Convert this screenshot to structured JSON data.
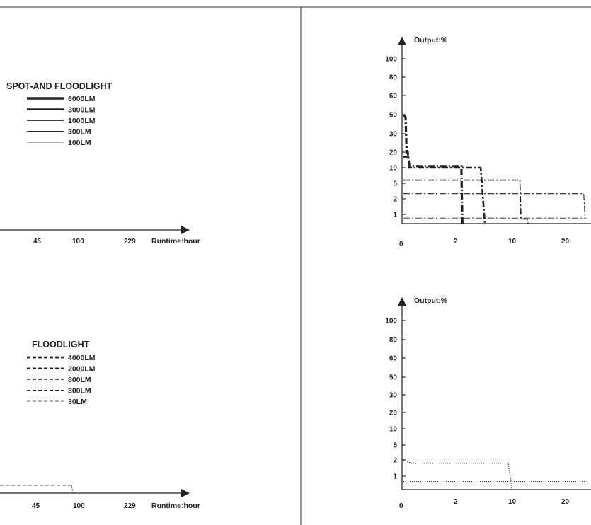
{
  "chart_data": [
    {
      "panel": "spot-and-floodlight-legend",
      "type": "line",
      "legend": {
        "title": "SPOT-AND FLOODLIGHT",
        "entries": [
          {
            "label": "6000LM",
            "style": "solid"
          },
          {
            "label": "3000LM",
            "style": "solid"
          },
          {
            "label": "1000LM",
            "style": "solid"
          },
          {
            "label": "300LM",
            "style": "solid"
          },
          {
            "label": "100LM",
            "style": "solid"
          }
        ]
      },
      "x_ticks": [
        "45",
        "100",
        "229"
      ],
      "xlabel": "Runtime:hour"
    },
    {
      "panel": "spot-and-floodlight-output",
      "type": "line",
      "ylabel": "Output:%",
      "y_ticks": [
        "100",
        "80",
        "60",
        "50",
        "30",
        "20",
        "10",
        "5",
        "2",
        "1"
      ],
      "x_ticks": [
        "0",
        "2",
        "10",
        "20"
      ],
      "series": [
        {
          "style": "dash-dot",
          "weight": 3.2,
          "points": [
            [
              0,
              50
            ],
            [
              0.08,
              47
            ],
            [
              0.12,
              20
            ],
            [
              0.16,
              20
            ],
            [
              0.22,
              11
            ],
            [
              2.7,
              11
            ],
            [
              2.85,
              0
            ]
          ]
        },
        {
          "style": "dash-dot",
          "weight": 2.6,
          "points": [
            [
              0,
              17
            ],
            [
              0.18,
              17
            ],
            [
              0.22,
              10
            ],
            [
              5.5,
              10
            ],
            [
              6.1,
              0
            ]
          ]
        },
        {
          "style": "dash-dot",
          "weight": 1.6,
          "points": [
            [
              0,
              6
            ],
            [
              11.5,
              6
            ],
            [
              11.7,
              0.5
            ],
            [
              12.8,
              0.5
            ],
            [
              13,
              0
            ]
          ]
        },
        {
          "style": "dash-dot",
          "weight": 1.1,
          "points": [
            [
              0,
              3
            ],
            [
              33,
              3
            ],
            [
              34,
              0.5
            ]
          ]
        },
        {
          "style": "dash-dot",
          "weight": 0.9,
          "points": [
            [
              0,
              0.6
            ],
            [
              35,
              0.6
            ]
          ]
        }
      ]
    },
    {
      "panel": "floodlight-legend",
      "type": "line",
      "legend": {
        "title": "FLOODLIGHT",
        "entries": [
          {
            "label": "4000LM",
            "style": "dashed"
          },
          {
            "label": "2000LM",
            "style": "dashed"
          },
          {
            "label": "800LM",
            "style": "dashed"
          },
          {
            "label": "300LM",
            "style": "dashed"
          },
          {
            "label": "30LM",
            "style": "dashed"
          }
        ]
      },
      "x_ticks": [
        "45",
        "100",
        "229"
      ],
      "xlabel": "Runtime:hour"
    },
    {
      "panel": "floodlight-output",
      "type": "line",
      "ylabel": "Output:%",
      "y_ticks": [
        "100",
        "80",
        "60",
        "50",
        "30",
        "20",
        "10",
        "5",
        "2",
        "1"
      ],
      "x_ticks": [
        "0",
        "2",
        "10",
        "20"
      ],
      "series": [
        {
          "style": "dotted",
          "weight": 1.4,
          "points": [
            [
              0,
              2
            ],
            [
              0.3,
              1.8
            ],
            [
              9.5,
              1.8
            ],
            [
              10,
              0.1
            ]
          ]
        },
        {
          "style": "dotted",
          "weight": 1.0,
          "points": [
            [
              0,
              0.6
            ],
            [
              35,
              0.6
            ]
          ]
        },
        {
          "style": "dotted",
          "weight": 0.9,
          "points": [
            [
              0,
              0.35
            ],
            [
              35,
              0.35
            ]
          ]
        }
      ]
    }
  ],
  "colors": {
    "ink": "#222222",
    "panel_border": "#333333",
    "background": "#ffffff"
  }
}
